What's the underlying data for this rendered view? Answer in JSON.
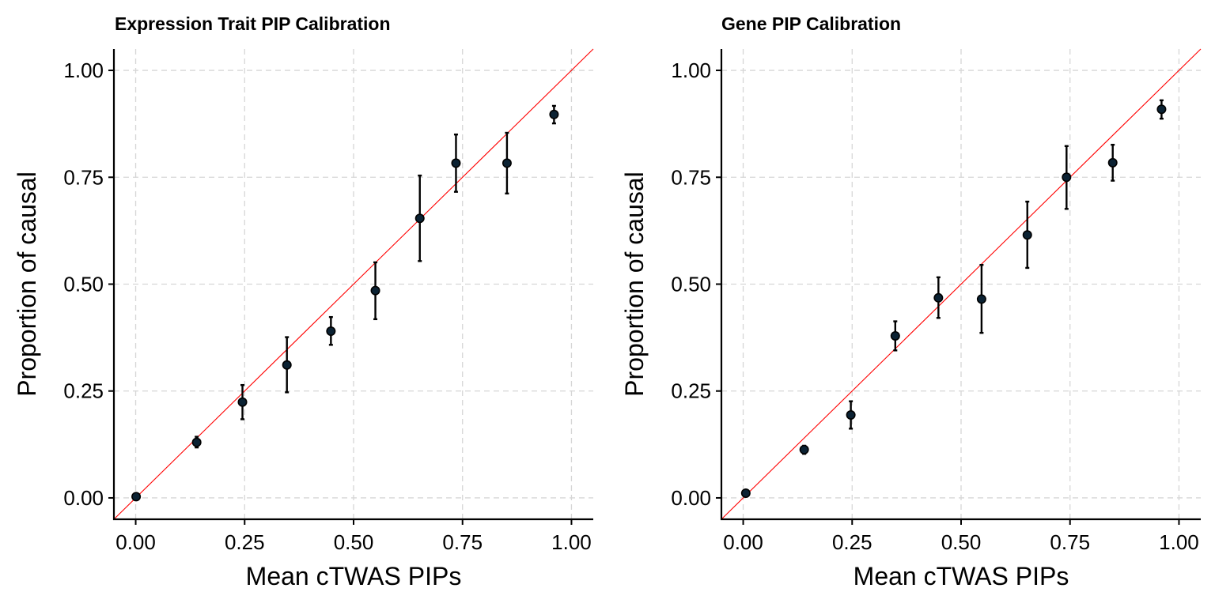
{
  "chart_data": [
    {
      "type": "scatter",
      "title": "Expression Trait PIP Calibration",
      "xlabel": "Mean cTWAS PIPs",
      "ylabel": "Proportion of causal",
      "xlim": [
        -0.05,
        1.05
      ],
      "ylim": [
        -0.05,
        1.05
      ],
      "xticks": [
        "0.00",
        "0.25",
        "0.50",
        "0.75",
        "1.00"
      ],
      "yticks": [
        "0.00",
        "0.25",
        "0.50",
        "0.75",
        "1.00"
      ],
      "grid": true,
      "reference_line": "y = x",
      "reference_color": "#ff0000",
      "point_color": "#0b2233",
      "points": [
        {
          "x": 0.001,
          "y": 0.003,
          "lo": 0.001,
          "hi": 0.005
        },
        {
          "x": 0.14,
          "y": 0.13,
          "lo": 0.118,
          "hi": 0.143
        },
        {
          "x": 0.245,
          "y": 0.224,
          "lo": 0.184,
          "hi": 0.264
        },
        {
          "x": 0.347,
          "y": 0.311,
          "lo": 0.247,
          "hi": 0.376
        },
        {
          "x": 0.448,
          "y": 0.39,
          "lo": 0.358,
          "hi": 0.423
        },
        {
          "x": 0.55,
          "y": 0.485,
          "lo": 0.418,
          "hi": 0.551
        },
        {
          "x": 0.652,
          "y": 0.654,
          "lo": 0.554,
          "hi": 0.754
        },
        {
          "x": 0.735,
          "y": 0.783,
          "lo": 0.716,
          "hi": 0.85
        },
        {
          "x": 0.852,
          "y": 0.783,
          "lo": 0.712,
          "hi": 0.854
        },
        {
          "x": 0.96,
          "y": 0.897,
          "lo": 0.876,
          "hi": 0.917
        }
      ]
    },
    {
      "type": "scatter",
      "title": "Gene PIP Calibration",
      "xlabel": "Mean cTWAS PIPs",
      "ylabel": "Proportion of causal",
      "xlim": [
        -0.05,
        1.05
      ],
      "ylim": [
        -0.05,
        1.05
      ],
      "xticks": [
        "0.00",
        "0.25",
        "0.50",
        "0.75",
        "1.00"
      ],
      "yticks": [
        "0.00",
        "0.25",
        "0.50",
        "0.75",
        "1.00"
      ],
      "grid": true,
      "reference_line": "y = x",
      "reference_color": "#ff0000",
      "point_color": "#0b2233",
      "points": [
        {
          "x": 0.006,
          "y": 0.011,
          "lo": 0.007,
          "hi": 0.015
        },
        {
          "x": 0.14,
          "y": 0.113,
          "lo": 0.103,
          "hi": 0.122
        },
        {
          "x": 0.247,
          "y": 0.194,
          "lo": 0.162,
          "hi": 0.226
        },
        {
          "x": 0.349,
          "y": 0.379,
          "lo": 0.345,
          "hi": 0.413
        },
        {
          "x": 0.448,
          "y": 0.468,
          "lo": 0.421,
          "hi": 0.516
        },
        {
          "x": 0.547,
          "y": 0.465,
          "lo": 0.386,
          "hi": 0.545
        },
        {
          "x": 0.652,
          "y": 0.615,
          "lo": 0.538,
          "hi": 0.693
        },
        {
          "x": 0.742,
          "y": 0.75,
          "lo": 0.676,
          "hi": 0.823
        },
        {
          "x": 0.848,
          "y": 0.784,
          "lo": 0.742,
          "hi": 0.826
        },
        {
          "x": 0.96,
          "y": 0.909,
          "lo": 0.887,
          "hi": 0.93
        }
      ]
    }
  ]
}
